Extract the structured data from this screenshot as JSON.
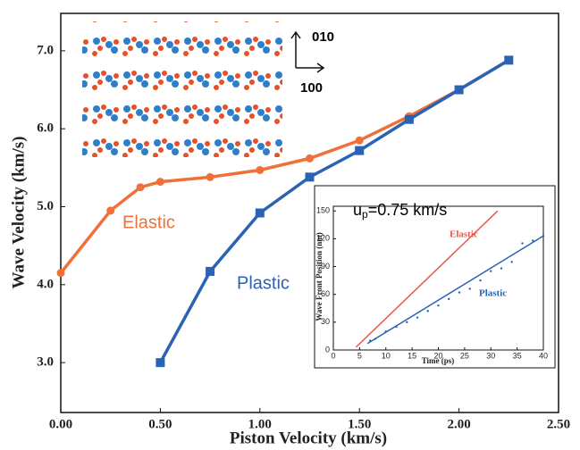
{
  "chart_data": [
    {
      "type": "line",
      "x_label": "Piston Velocity (km/s)",
      "y_label": "Wave Velocity (km/s)",
      "xlim": [
        0,
        2.5
      ],
      "ylim": [
        2.36,
        7.48
      ],
      "xticks": [
        {
          "value": 0,
          "label": "0.00"
        },
        {
          "value": 0.5,
          "label": "0.50"
        },
        {
          "value": 1,
          "label": "1.00"
        },
        {
          "value": 1.5,
          "label": "1.50"
        },
        {
          "value": 2,
          "label": "2.00"
        },
        {
          "value": 2.5,
          "label": "2.50"
        }
      ],
      "yticks": [
        {
          "value": 3,
          "label": "3.0"
        },
        {
          "value": 4,
          "label": "4.0"
        },
        {
          "value": 5,
          "label": "5.0"
        },
        {
          "value": 6,
          "label": "6.0"
        },
        {
          "value": 7,
          "label": "7.0"
        }
      ],
      "axis_labels_extra": {
        "up": "010",
        "right": "100"
      },
      "series": [
        {
          "name": "Elastic",
          "color": "#f0703a",
          "marker": "circle",
          "x": [
            0,
            0.25,
            0.4,
            0.5,
            0.75,
            1.0,
            1.25,
            1.5,
            1.75,
            2.0,
            2.25
          ],
          "values": [
            4.15,
            4.95,
            5.25,
            5.32,
            5.38,
            5.47,
            5.62,
            5.85,
            6.16,
            6.5,
            6.88
          ]
        },
        {
          "name": "Plastic",
          "color": "#2a62b4",
          "marker": "square",
          "x": [
            0.5,
            0.75,
            1.0,
            1.25,
            1.5,
            1.75,
            2.0,
            2.25
          ],
          "values": [
            3.0,
            4.17,
            4.92,
            5.38,
            5.72,
            6.12,
            6.5,
            6.88
          ]
        }
      ]
    },
    {
      "type": "line",
      "title": "u",
      "title_subscript": "p",
      "title_rest": "=0.75 km/s",
      "x_label": "Time (ps)",
      "y_label": "Wave Front Position (nm)",
      "xlim": [
        0,
        40
      ],
      "ylim": [
        0,
        155
      ],
      "xticks": [
        0,
        5,
        10,
        15,
        20,
        25,
        30,
        35,
        40
      ],
      "yticks": [
        0,
        30,
        60,
        90,
        120,
        150
      ],
      "series": [
        {
          "name": "Elastic",
          "color": "#e8574a",
          "marker": "none",
          "x": [
            4.3,
            31.3
          ],
          "values": [
            3,
            150
          ]
        },
        {
          "name": "Plastic",
          "color": "#2a62b4",
          "marker": "dot",
          "x": [
            7,
            8,
            10,
            12,
            14,
            16,
            18,
            20,
            22,
            24,
            26,
            28,
            30,
            32,
            34,
            36,
            38,
            40
          ],
          "values": [
            10,
            12,
            20,
            25,
            30,
            35,
            42,
            48,
            55,
            62,
            66,
            75,
            85,
            88,
            95,
            115,
            118,
            123
          ],
          "fit_x": [
            6.5,
            40
          ],
          "fit_values": [
            7,
            123
          ]
        }
      ]
    }
  ]
}
